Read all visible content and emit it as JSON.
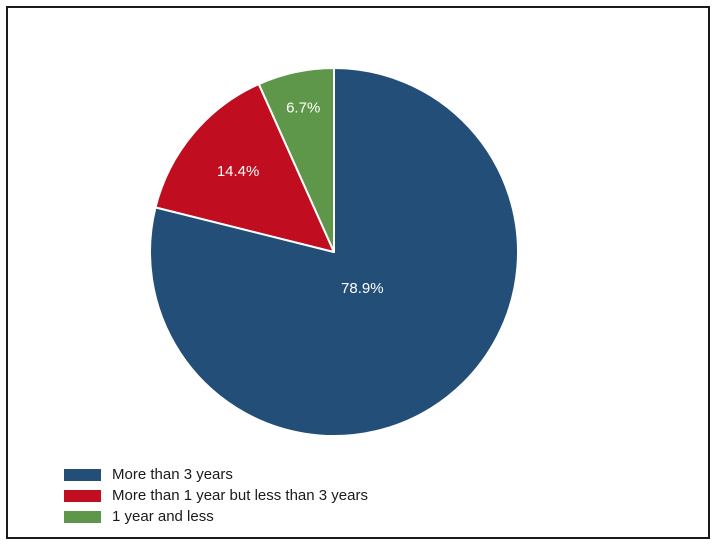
{
  "chart_data": {
    "type": "pie",
    "title": "",
    "slices": [
      {
        "name": "More than 3 years",
        "value": 78.9,
        "label": "78.9%",
        "color": "#234e78"
      },
      {
        "name": "More than 1 year but less than 3 years",
        "value": 14.4,
        "label": "14.4%",
        "color": "#c00d1f"
      },
      {
        "name": "1 year and less",
        "value": 6.7,
        "label": "6.7%",
        "color": "#5f974a"
      }
    ],
    "legend_position": "bottom-left"
  }
}
